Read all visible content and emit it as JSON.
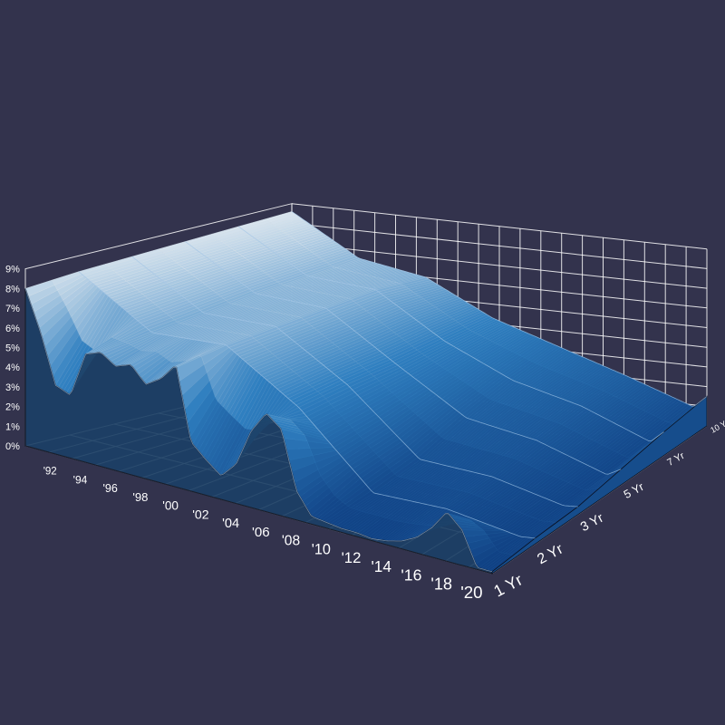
{
  "chart_data": {
    "type": "surface",
    "title": "",
    "xlabel": "",
    "ylabel": "",
    "zlabel": "",
    "colors": {
      "background": "#33334d",
      "surface_low": "#0f3f82",
      "surface_mid": "#2f7fc0",
      "surface_high": "#d8e4ee",
      "outline": "#0a0f1e",
      "grid": "#ffffff"
    },
    "x_ticks": [
      "'92",
      "'94",
      "'96",
      "'98",
      "'00",
      "'02",
      "'04",
      "'06",
      "'08",
      "'10",
      "'12",
      "'14",
      "'16",
      "'18",
      "'20"
    ],
    "maturity_ticks": [
      "1 Yr",
      "2 Yr",
      "3 Yr",
      "5 Yr",
      "7 Yr",
      "10 Yr"
    ],
    "z_ticks": [
      "0%",
      "1%",
      "2%",
      "3%",
      "4%",
      "5%",
      "6%",
      "7%",
      "8%",
      "9%"
    ],
    "z_range": [
      0,
      9
    ],
    "x_range": [
      1990,
      2021
    ],
    "grid": true,
    "series": [
      {
        "name": "1 Yr",
        "x": [
          1990,
          1991,
          1992,
          1993,
          1994,
          1995,
          1996,
          1997,
          1998,
          1999,
          2000,
          2001,
          2002,
          2003,
          2004,
          2005,
          2006,
          2007,
          2008,
          2009,
          2010,
          2011,
          2012,
          2013,
          2014,
          2015,
          2016,
          2017,
          2018,
          2019,
          2020,
          2021
        ],
        "values": [
          8.0,
          6.0,
          3.5,
          3.2,
          5.5,
          5.8,
          5.3,
          5.6,
          4.8,
          5.3,
          6.2,
          2.5,
          1.8,
          1.2,
          2.0,
          3.9,
          5.0,
          4.4,
          1.5,
          0.4,
          0.3,
          0.2,
          0.2,
          0.1,
          0.2,
          0.4,
          0.8,
          1.5,
          2.5,
          1.8,
          0.1,
          0.1
        ]
      },
      {
        "name": "2 Yr",
        "x": [
          1990,
          1995,
          2000,
          2005,
          2010,
          2015,
          2020,
          2021
        ],
        "values": [
          8.2,
          6.0,
          6.3,
          4.0,
          0.6,
          0.7,
          0.2,
          0.3
        ]
      },
      {
        "name": "3 Yr",
        "x": [
          1990,
          1995,
          2000,
          2005,
          2010,
          2015,
          2020,
          2021
        ],
        "values": [
          8.3,
          6.2,
          6.3,
          4.1,
          1.1,
          1.0,
          0.3,
          0.4
        ]
      },
      {
        "name": "5 Yr",
        "x": [
          1990,
          1995,
          2000,
          2005,
          2010,
          2015,
          2020,
          2021
        ],
        "values": [
          8.4,
          6.4,
          6.3,
          4.1,
          2.0,
          1.5,
          0.4,
          0.8
        ]
      },
      {
        "name": "7 Yr",
        "x": [
          1990,
          1995,
          2000,
          2005,
          2010,
          2015,
          2020,
          2021
        ],
        "values": [
          8.5,
          6.5,
          6.3,
          4.2,
          2.7,
          1.9,
          0.6,
          1.2
        ]
      },
      {
        "name": "10 Yr",
        "x": [
          1990,
          1995,
          2000,
          2005,
          2010,
          2015,
          2020,
          2021
        ],
        "values": [
          8.6,
          6.6,
          6.0,
          4.3,
          3.2,
          2.1,
          0.9,
          1.5
        ]
      }
    ]
  }
}
